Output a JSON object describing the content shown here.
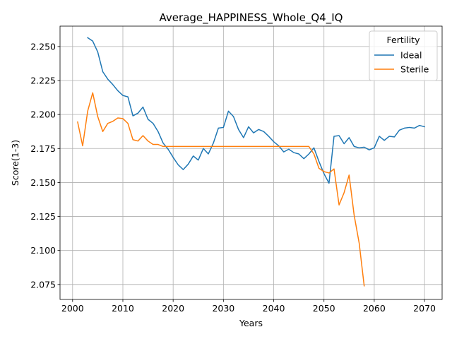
{
  "chart_data": {
    "type": "line",
    "title": "Average_HAPPINESS_Whole_Q4_IQ",
    "xlabel": "Years",
    "ylabel": "Score(1-3)",
    "xlim": [
      1997.5,
      2073.5
    ],
    "ylim": [
      2.064,
      2.265
    ],
    "xticks": [
      2000,
      2010,
      2020,
      2030,
      2040,
      2050,
      2060,
      2070
    ],
    "xtick_labels": [
      "2000",
      "2010",
      "2020",
      "2030",
      "2040",
      "2050",
      "2060",
      "2070"
    ],
    "yticks": [
      2.075,
      2.1,
      2.125,
      2.15,
      2.175,
      2.2,
      2.225,
      2.25
    ],
    "ytick_labels": [
      "2.075",
      "2.100",
      "2.125",
      "2.150",
      "2.175",
      "2.200",
      "2.225",
      "2.250"
    ],
    "grid": true,
    "legend": {
      "title": "Fertility",
      "position": "top-right"
    },
    "series": [
      {
        "name": "Ideal",
        "color": "#1f77b4",
        "x": [
          2003,
          2004,
          2005,
          2006,
          2007,
          2008,
          2009,
          2010,
          2011,
          2012,
          2013,
          2014,
          2015,
          2016,
          2017,
          2018,
          2019,
          2020,
          2021,
          2022,
          2023,
          2024,
          2025,
          2026,
          2027,
          2028,
          2029,
          2030,
          2031,
          2032,
          2033,
          2034,
          2035,
          2036,
          2037,
          2038,
          2039,
          2040,
          2041,
          2042,
          2043,
          2044,
          2045,
          2046,
          2047,
          2048,
          2049,
          2050,
          2051,
          2052,
          2053,
          2054,
          2055,
          2056,
          2057,
          2058,
          2059,
          2060,
          2061,
          2062,
          2063,
          2064,
          2065,
          2066,
          2067,
          2068,
          2069,
          2070
        ],
        "y": [
          2.2565,
          2.254,
          2.246,
          2.2315,
          2.226,
          2.222,
          2.2175,
          2.214,
          2.213,
          2.199,
          2.201,
          2.2055,
          2.1965,
          2.1935,
          2.1875,
          2.179,
          2.1745,
          2.1685,
          2.163,
          2.1595,
          2.1635,
          2.1695,
          2.1665,
          2.175,
          2.171,
          2.179,
          2.19,
          2.1905,
          2.2025,
          2.1985,
          2.189,
          2.183,
          2.191,
          2.1865,
          2.189,
          2.1875,
          2.184,
          2.18,
          2.177,
          2.1725,
          2.1745,
          2.172,
          2.171,
          2.1675,
          2.171,
          2.1755,
          2.1655,
          2.1565,
          2.1495,
          2.184,
          2.1845,
          2.1785,
          2.183,
          2.1765,
          2.1755,
          2.176,
          2.174,
          2.1755,
          2.184,
          2.181,
          2.184,
          2.1835,
          2.1885,
          2.19,
          2.1905,
          2.19,
          2.192,
          2.191
        ]
      },
      {
        "name": "Sterile",
        "color": "#ff7f0e",
        "x": [
          2001,
          2002,
          2003,
          2004,
          2005,
          2006,
          2007,
          2008,
          2009,
          2010,
          2011,
          2012,
          2013,
          2014,
          2015,
          2016,
          2017,
          2018,
          2019,
          2020,
          2021,
          2022,
          2023,
          2024,
          2025,
          2026,
          2027,
          2028,
          2029,
          2030,
          2031,
          2032,
          2033,
          2034,
          2035,
          2036,
          2037,
          2038,
          2039,
          2040,
          2041,
          2042,
          2043,
          2044,
          2045,
          2046,
          2047,
          2048,
          2049,
          2050,
          2051,
          2052,
          2053,
          2054,
          2055,
          2056,
          2057,
          2058
        ],
        "y": [
          2.1945,
          2.177,
          2.2025,
          2.216,
          2.1985,
          2.1875,
          2.1935,
          2.195,
          2.1975,
          2.197,
          2.1935,
          2.1815,
          2.1805,
          2.1845,
          2.1805,
          2.178,
          2.178,
          2.1765,
          2.1765,
          2.1765,
          2.1765,
          2.1765,
          2.1765,
          2.1765,
          2.1765,
          2.1765,
          2.1765,
          2.1765,
          2.1765,
          2.1765,
          2.1765,
          2.1765,
          2.1765,
          2.1765,
          2.1765,
          2.1765,
          2.1765,
          2.1765,
          2.1765,
          2.1765,
          2.1765,
          2.1765,
          2.1765,
          2.1765,
          2.1765,
          2.1765,
          2.1765,
          2.171,
          2.1605,
          2.158,
          2.157,
          2.16,
          2.1335,
          2.1425,
          2.1555,
          2.126,
          2.1055,
          2.074
        ]
      }
    ]
  }
}
